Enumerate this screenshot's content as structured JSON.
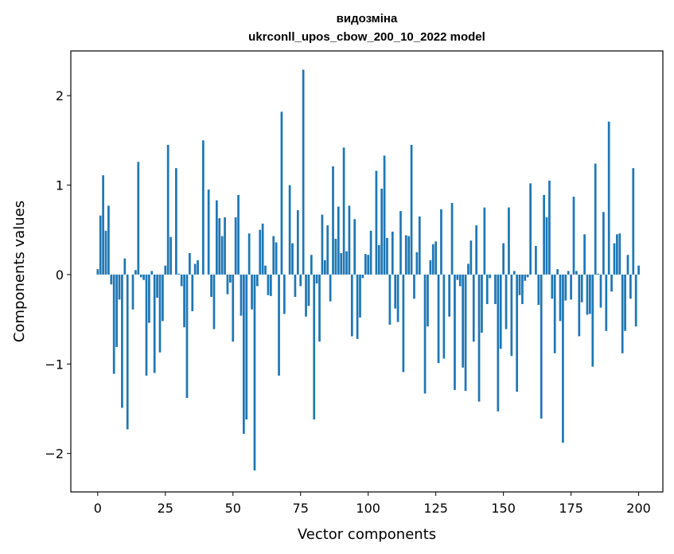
{
  "chart_data": {
    "type": "bar",
    "title": "видозміна",
    "subtitle": "ukrconll_upos_cbow_200_10_2022 model",
    "xlabel": "Vector components",
    "ylabel": "Components values",
    "xlim": [
      -9.95,
      208.95
    ],
    "ylim": [
      -2.43,
      2.5
    ],
    "xticks": [
      0,
      25,
      50,
      75,
      100,
      125,
      150,
      175,
      200
    ],
    "xtick_labels": [
      "0",
      "25",
      "50",
      "75",
      "100",
      "125",
      "150",
      "175",
      "200"
    ],
    "yticks": [
      -2,
      -1,
      0,
      1,
      2
    ],
    "ytick_labels": [
      "−2",
      "−1",
      "0",
      "1",
      "2"
    ],
    "bar_color": "#1f77b4",
    "values": [
      0.06,
      0.66,
      1.11,
      0.49,
      0.77,
      -0.11,
      -1.11,
      -0.81,
      -0.28,
      -1.49,
      0.18,
      -1.73,
      0.0,
      -0.39,
      0.05,
      1.26,
      -0.03,
      -0.06,
      -1.13,
      -0.54,
      0.04,
      -1.1,
      -0.26,
      -0.87,
      -0.52,
      0.1,
      1.45,
      0.42,
      0.0,
      1.19,
      0.01,
      -0.13,
      -0.59,
      -1.38,
      0.24,
      -0.41,
      0.12,
      0.16,
      0.0,
      1.5,
      0.0,
      0.95,
      -0.25,
      -0.61,
      0.83,
      0.63,
      0.43,
      0.64,
      -0.22,
      -0.09,
      -0.75,
      0.64,
      0.89,
      -0.46,
      -1.78,
      -1.62,
      0.46,
      -0.39,
      -2.19,
      -0.13,
      0.5,
      0.57,
      0.1,
      -0.23,
      -0.24,
      0.43,
      0.36,
      -1.13,
      1.82,
      -0.44,
      0.0,
      1.0,
      0.35,
      -0.25,
      0.72,
      -0.13,
      2.29,
      -0.47,
      -0.35,
      0.22,
      -1.62,
      -0.1,
      -0.75,
      0.67,
      0.16,
      0.55,
      -0.3,
      1.21,
      0.4,
      0.76,
      0.24,
      1.42,
      0.26,
      0.77,
      -0.69,
      0.62,
      -0.72,
      -0.48,
      -0.04,
      0.23,
      0.22,
      0.49,
      0.0,
      1.16,
      0.33,
      0.96,
      1.33,
      0.41,
      -0.56,
      0.48,
      -0.38,
      -0.53,
      0.71,
      -1.09,
      0.44,
      0.43,
      1.45,
      -0.27,
      0.25,
      0.65,
      0.0,
      -1.33,
      -0.58,
      0.16,
      0.34,
      0.37,
      -0.99,
      0.73,
      -0.94,
      0.0,
      -0.47,
      0.8,
      -1.29,
      -0.06,
      -0.13,
      -1.04,
      -1.3,
      0.12,
      0.38,
      -0.75,
      0.55,
      -1.42,
      -0.65,
      0.75,
      -0.33,
      -0.04,
      0.0,
      -0.33,
      -1.53,
      -0.83,
      0.35,
      -0.61,
      0.75,
      -0.91,
      0.04,
      -1.31,
      -0.23,
      -0.33,
      -0.07,
      -0.03,
      1.02,
      0.0,
      0.32,
      -0.34,
      -1.61,
      0.89,
      0.64,
      1.05,
      -0.27,
      -0.88,
      0.06,
      -0.52,
      -1.88,
      -0.29,
      0.04,
      -0.28,
      0.87,
      0.04,
      -0.69,
      -0.31,
      0.45,
      -0.45,
      -0.44,
      -1.03,
      1.24,
      0.01,
      -0.37,
      0.7,
      -0.63,
      1.71,
      -0.19,
      0.35,
      0.45,
      0.46,
      -0.88,
      -0.63,
      0.22,
      -0.27,
      1.19,
      -0.58,
      0.1
    ]
  }
}
